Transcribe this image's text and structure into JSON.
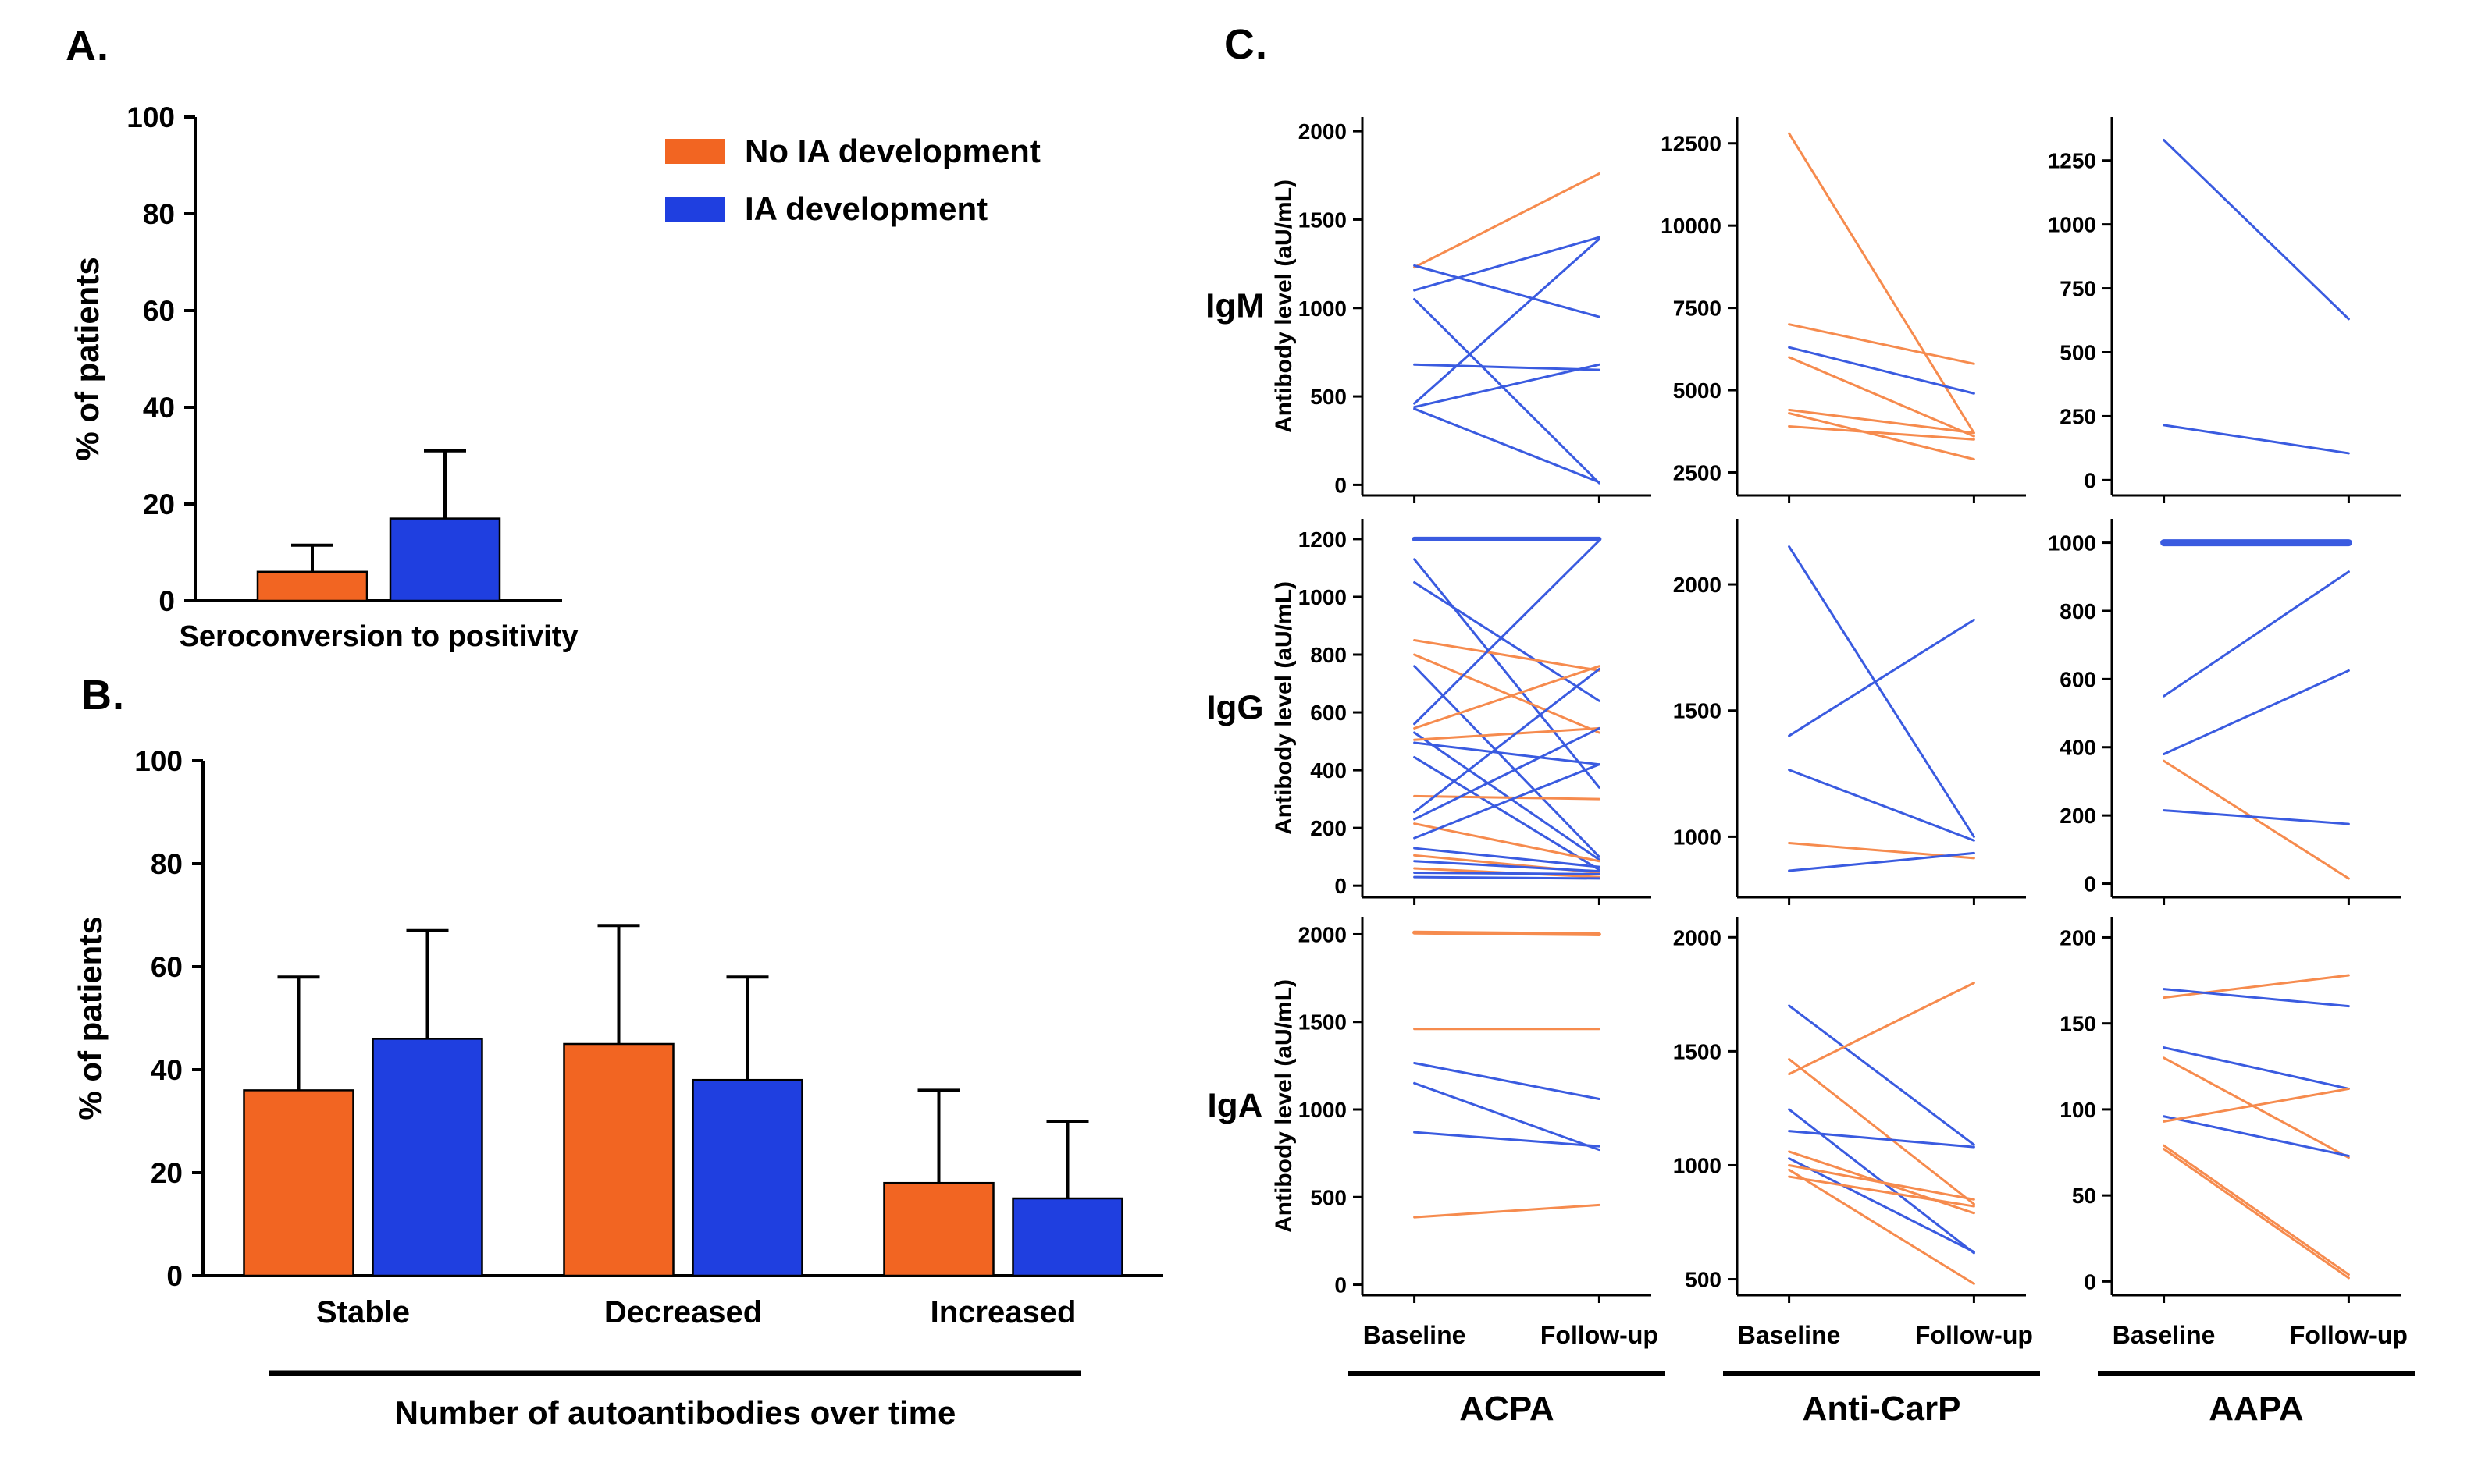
{
  "panels": {
    "a_label": "A.",
    "b_label": "B.",
    "c_label": "C."
  },
  "colors": {
    "no_ia": "#F26522",
    "ia": "#1F3FE0",
    "no_ia_line": "#F68B4E",
    "ia_line": "#3A5BE0",
    "axis": "#000000"
  },
  "legend": {
    "items": [
      {
        "key": "no_ia",
        "label": "No IA development"
      },
      {
        "key": "ia",
        "label": "IA development"
      }
    ]
  },
  "chart_data": [
    {
      "id": "panel-a",
      "type": "bar",
      "title": "",
      "ylabel": "% of patients",
      "ylim": [
        0,
        100
      ],
      "yticks": [
        0,
        20,
        40,
        60,
        80,
        100
      ],
      "categories": [
        "Seroconversion to positivity"
      ],
      "series": [
        {
          "key": "no_ia",
          "name": "No IA development",
          "values": [
            6
          ],
          "errors_up": [
            5.5
          ]
        },
        {
          "key": "ia",
          "name": "IA development",
          "values": [
            17
          ],
          "errors_up": [
            14
          ]
        }
      ]
    },
    {
      "id": "panel-b",
      "type": "bar",
      "title": "",
      "ylabel": "% of patients",
      "xlabel": "Number of autoantibodies over time",
      "ylim": [
        0,
        100
      ],
      "yticks": [
        0,
        20,
        40,
        60,
        80,
        100
      ],
      "categories": [
        "Stable",
        "Decreased",
        "Increased"
      ],
      "series": [
        {
          "key": "no_ia",
          "name": "No IA development",
          "values": [
            36,
            45,
            18
          ],
          "errors_up": [
            22,
            23,
            18
          ]
        },
        {
          "key": "ia",
          "name": "IA development",
          "values": [
            46,
            38,
            15
          ],
          "errors_up": [
            21,
            20,
            15
          ]
        }
      ]
    },
    {
      "id": "panel-c",
      "type": "line",
      "x_categories": [
        "Baseline",
        "Follow-up"
      ],
      "columns": [
        "ACPA",
        "Anti-CarP",
        "AAPA"
      ],
      "rows": [
        "IgM",
        "IgG",
        "IgA"
      ],
      "row_axis_label": "Antibody level (aU/mL)",
      "subplots": [
        {
          "row": 0,
          "col": 0,
          "ylim": [
            -60,
            2080
          ],
          "yticks": [
            0,
            500,
            1000,
            1500,
            2000
          ],
          "lines": [
            {
              "group": "no_ia",
              "values": [
                1230,
                1760
              ]
            },
            {
              "group": "ia",
              "values": [
                1100,
                1400
              ]
            },
            {
              "group": "ia",
              "values": [
                1240,
                950
              ]
            },
            {
              "group": "ia",
              "values": [
                1050,
                10
              ]
            },
            {
              "group": "ia",
              "values": [
                680,
                650
              ]
            },
            {
              "group": "ia",
              "values": [
                460,
                1390
              ]
            },
            {
              "group": "ia",
              "values": [
                440,
                680
              ]
            },
            {
              "group": "ia",
              "values": [
                430,
                15
              ]
            }
          ]
        },
        {
          "row": 0,
          "col": 1,
          "ylim": [
            1800,
            13300
          ],
          "yticks": [
            2500,
            5000,
            7500,
            10000,
            12500
          ],
          "lines": [
            {
              "group": "no_ia",
              "values": [
                12800,
                3700
              ]
            },
            {
              "group": "no_ia",
              "values": [
                7000,
                5800
              ]
            },
            {
              "group": "ia",
              "values": [
                6300,
                4900
              ]
            },
            {
              "group": "no_ia",
              "values": [
                6000,
                3600
              ]
            },
            {
              "group": "no_ia",
              "values": [
                4400,
                3700
              ]
            },
            {
              "group": "no_ia",
              "values": [
                4300,
                2900
              ]
            },
            {
              "group": "no_ia",
              "values": [
                3900,
                3500
              ]
            }
          ]
        },
        {
          "row": 0,
          "col": 2,
          "ylim": [
            -60,
            1420
          ],
          "yticks": [
            0,
            250,
            500,
            750,
            1000,
            1250
          ],
          "lines": [
            {
              "group": "ia",
              "values": [
                1330,
                630
              ]
            },
            {
              "group": "ia",
              "values": [
                215,
                105
              ]
            }
          ]
        },
        {
          "row": 1,
          "col": 0,
          "ylim": [
            -40,
            1270
          ],
          "yticks": [
            0,
            200,
            400,
            600,
            800,
            1000,
            1200
          ],
          "lines": [
            {
              "group": "ia",
              "values": [
                1200,
                1200
              ],
              "width": 6
            },
            {
              "group": "ia",
              "values": [
                1130,
                340
              ]
            },
            {
              "group": "ia",
              "values": [
                1050,
                640
              ]
            },
            {
              "group": "no_ia",
              "values": [
                850,
                745
              ]
            },
            {
              "group": "no_ia",
              "values": [
                800,
                530
              ]
            },
            {
              "group": "ia",
              "values": [
                760,
                100
              ]
            },
            {
              "group": "ia",
              "values": [
                560,
                1195
              ]
            },
            {
              "group": "no_ia",
              "values": [
                545,
                760
              ]
            },
            {
              "group": "ia",
              "values": [
                530,
                90
              ]
            },
            {
              "group": "no_ia",
              "values": [
                505,
                545
              ]
            },
            {
              "group": "ia",
              "values": [
                495,
                420
              ]
            },
            {
              "group": "ia",
              "values": [
                445,
                55
              ]
            },
            {
              "group": "no_ia",
              "values": [
                310,
                300
              ]
            },
            {
              "group": "ia",
              "values": [
                255,
                750
              ]
            },
            {
              "group": "ia",
              "values": [
                230,
                545
              ]
            },
            {
              "group": "no_ia",
              "values": [
                215,
                85
              ]
            },
            {
              "group": "ia",
              "values": [
                165,
                420
              ]
            },
            {
              "group": "ia",
              "values": [
                130,
                65
              ]
            },
            {
              "group": "no_ia",
              "values": [
                105,
                45
              ]
            },
            {
              "group": "ia",
              "values": [
                85,
                50
              ]
            },
            {
              "group": "no_ia",
              "values": [
                60,
                30
              ]
            },
            {
              "group": "ia",
              "values": [
                45,
                40
              ]
            },
            {
              "group": "ia",
              "values": [
                30,
                25
              ]
            }
          ]
        },
        {
          "row": 1,
          "col": 1,
          "ylim": [
            760,
            2260
          ],
          "yticks": [
            1000,
            1500,
            2000
          ],
          "lines": [
            {
              "group": "ia",
              "values": [
                2150,
                1000
              ]
            },
            {
              "group": "ia",
              "values": [
                1400,
                1860
              ]
            },
            {
              "group": "ia",
              "values": [
                1265,
                985
              ]
            },
            {
              "group": "no_ia",
              "values": [
                975,
                915
              ]
            },
            {
              "group": "ia",
              "values": [
                865,
                935
              ]
            }
          ]
        },
        {
          "row": 1,
          "col": 2,
          "ylim": [
            -40,
            1070
          ],
          "yticks": [
            0,
            200,
            400,
            600,
            800,
            1000
          ],
          "lines": [
            {
              "group": "ia",
              "values": [
                1000,
                1000
              ],
              "width": 9
            },
            {
              "group": "ia",
              "values": [
                550,
                915
              ]
            },
            {
              "group": "ia",
              "values": [
                380,
                625
              ]
            },
            {
              "group": "no_ia",
              "values": [
                360,
                15
              ]
            },
            {
              "group": "ia",
              "values": [
                215,
                175
              ]
            }
          ]
        },
        {
          "row": 2,
          "col": 0,
          "ylim": [
            -60,
            2100
          ],
          "yticks": [
            0,
            500,
            1000,
            1500,
            2000
          ],
          "lines": [
            {
              "group": "no_ia",
              "values": [
                2010,
                2000
              ],
              "width": 5
            },
            {
              "group": "no_ia",
              "values": [
                1460,
                1460
              ]
            },
            {
              "group": "ia",
              "values": [
                1265,
                1060
              ]
            },
            {
              "group": "ia",
              "values": [
                1150,
                770
              ]
            },
            {
              "group": "ia",
              "values": [
                870,
                790
              ]
            },
            {
              "group": "no_ia",
              "values": [
                385,
                455
              ]
            }
          ]
        },
        {
          "row": 2,
          "col": 1,
          "ylim": [
            430,
            2090
          ],
          "yticks": [
            500,
            1000,
            1500,
            2000
          ],
          "lines": [
            {
              "group": "ia",
              "values": [
                1700,
                1090
              ]
            },
            {
              "group": "no_ia",
              "values": [
                1400,
                1800
              ]
            },
            {
              "group": "no_ia",
              "values": [
                1465,
                830
              ]
            },
            {
              "group": "ia",
              "values": [
                1245,
                615
              ]
            },
            {
              "group": "ia",
              "values": [
                1150,
                1080
              ]
            },
            {
              "group": "no_ia",
              "values": [
                1060,
                790
              ]
            },
            {
              "group": "ia",
              "values": [
                1030,
                620
              ]
            },
            {
              "group": "no_ia",
              "values": [
                1000,
                850
              ]
            },
            {
              "group": "no_ia",
              "values": [
                980,
                480
              ]
            },
            {
              "group": "no_ia",
              "values": [
                950,
                820
              ]
            }
          ]
        },
        {
          "row": 2,
          "col": 2,
          "ylim": [
            -8,
            212
          ],
          "yticks": [
            0,
            50,
            100,
            150,
            200
          ],
          "lines": [
            {
              "group": "no_ia",
              "values": [
                165,
                178
              ]
            },
            {
              "group": "ia",
              "values": [
                170,
                160
              ]
            },
            {
              "group": "ia",
              "values": [
                136,
                112
              ]
            },
            {
              "group": "no_ia",
              "values": [
                130,
                72
              ]
            },
            {
              "group": "ia",
              "values": [
                96,
                73
              ]
            },
            {
              "group": "no_ia",
              "values": [
                93,
                112
              ]
            },
            {
              "group": "no_ia",
              "values": [
                79,
                4
              ]
            },
            {
              "group": "no_ia",
              "values": [
                77,
                2
              ]
            }
          ]
        }
      ]
    }
  ]
}
